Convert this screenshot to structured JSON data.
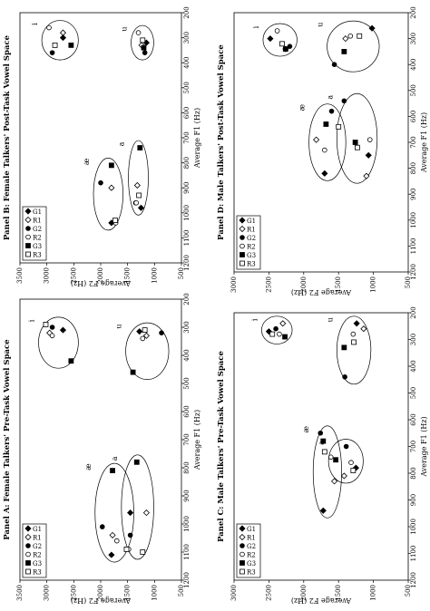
{
  "legend_labels": [
    "G1",
    "R1",
    "G2",
    "R2",
    "G3",
    "R3"
  ],
  "vowel_labels": [
    "i",
    "u",
    "æ",
    "a"
  ],
  "chart_data": [
    {
      "type": "scatter",
      "panel": "A",
      "title": "Panel A: Female Talkers' Pre-Task Vowel Space",
      "xlabel": "Average F1 (Hz)",
      "ylabel": "Average F2 (Hz)",
      "xlim": [
        200,
        1200
      ],
      "ylim": [
        500,
        3500
      ],
      "x_ticks": [
        200,
        300,
        400,
        500,
        600,
        700,
        800,
        900,
        1000,
        1100,
        1200
      ],
      "y_ticks": [
        3500,
        3000,
        2500,
        2000,
        1500,
        1000,
        500
      ],
      "y_reversed": true,
      "grid": false,
      "legend_position": "top-right",
      "series": [
        {
          "name": "G1",
          "points": [
            {
              "vowel": "i",
              "x": 310,
              "y": 2700
            },
            {
              "vowel": "u",
              "x": 315,
              "y": 1280
            },
            {
              "vowel": "æ",
              "x": 1110,
              "y": 1800
            },
            {
              "vowel": "a",
              "x": 960,
              "y": 1450
            }
          ]
        },
        {
          "name": "R1",
          "points": [
            {
              "vowel": "i",
              "x": 320,
              "y": 2950
            },
            {
              "vowel": "u",
              "x": 330,
              "y": 1150
            },
            {
              "vowel": "æ",
              "x": 1040,
              "y": 1780
            },
            {
              "vowel": "a",
              "x": 960,
              "y": 1150
            }
          ]
        },
        {
          "name": "G2",
          "points": [
            {
              "vowel": "i",
              "x": 300,
              "y": 2900
            },
            {
              "vowel": "u",
              "x": 320,
              "y": 870
            },
            {
              "vowel": "æ",
              "x": 1010,
              "y": 1970
            },
            {
              "vowel": "a",
              "x": 1040,
              "y": 1450
            }
          ]
        },
        {
          "name": "R2",
          "points": [
            {
              "vowel": "i",
              "x": 330,
              "y": 2900
            },
            {
              "vowel": "u",
              "x": 340,
              "y": 1220
            },
            {
              "vowel": "æ",
              "x": 1060,
              "y": 1700
            },
            {
              "vowel": "a",
              "x": 1090,
              "y": 1480
            }
          ]
        },
        {
          "name": "G3",
          "points": [
            {
              "vowel": "i",
              "x": 420,
              "y": 2550
            },
            {
              "vowel": "u",
              "x": 460,
              "y": 1400
            },
            {
              "vowel": "æ",
              "x": 810,
              "y": 1780
            },
            {
              "vowel": "a",
              "x": 780,
              "y": 1330
            }
          ]
        },
        {
          "name": "R3",
          "points": [
            {
              "vowel": "i",
              "x": 290,
              "y": 3020
            },
            {
              "vowel": "u",
              "x": 310,
              "y": 1180
            },
            {
              "vowel": "æ",
              "x": 1090,
              "y": 1520
            },
            {
              "vowel": "a",
              "x": 1100,
              "y": 1220
            }
          ]
        }
      ]
    },
    {
      "type": "scatter",
      "panel": "B",
      "title": "Panel B: Female Talkers' Post-Task Vowel Space",
      "xlabel": "Average F1 (Hz)",
      "ylabel": "Average F2 (Hz)",
      "xlim": [
        200,
        1200
      ],
      "ylim": [
        500,
        3500
      ],
      "x_ticks": [
        200,
        300,
        400,
        500,
        600,
        700,
        800,
        900,
        1000,
        1100,
        1200
      ],
      "y_ticks": [
        3500,
        3000,
        2500,
        2000,
        1500,
        1000,
        500
      ],
      "y_reversed": true,
      "grid": false,
      "legend_position": "top-right",
      "series": [
        {
          "name": "G1",
          "points": [
            {
              "vowel": "i",
              "x": 300,
              "y": 2700
            },
            {
              "vowel": "u",
              "x": 320,
              "y": 1150
            },
            {
              "vowel": "æ",
              "x": 1040,
              "y": 1800
            },
            {
              "vowel": "a",
              "x": 980,
              "y": 1250
            }
          ]
        },
        {
          "name": "R1",
          "points": [
            {
              "vowel": "i",
              "x": 280,
              "y": 2700
            },
            {
              "vowel": "u",
              "x": 330,
              "y": 1240
            },
            {
              "vowel": "æ",
              "x": 900,
              "y": 1800
            },
            {
              "vowel": "a",
              "x": 890,
              "y": 1320
            }
          ]
        },
        {
          "name": "G2",
          "points": [
            {
              "vowel": "i",
              "x": 360,
              "y": 2900
            },
            {
              "vowel": "u",
              "x": 360,
              "y": 1180
            },
            {
              "vowel": "æ",
              "x": 880,
              "y": 2000
            },
            {
              "vowel": "a",
              "x": 960,
              "y": 1350
            }
          ]
        },
        {
          "name": "R2",
          "points": [
            {
              "vowel": "i",
              "x": 260,
              "y": 2960
            },
            {
              "vowel": "u",
              "x": 280,
              "y": 1300
            },
            {
              "vowel": "æ",
              "x": 1040,
              "y": 1720
            },
            {
              "vowel": "a",
              "x": 960,
              "y": 1340
            }
          ]
        },
        {
          "name": "G3",
          "points": [
            {
              "vowel": "i",
              "x": 330,
              "y": 2550
            },
            {
              "vowel": "u",
              "x": 340,
              "y": 1200
            },
            {
              "vowel": "æ",
              "x": 810,
              "y": 1800
            },
            {
              "vowel": "a",
              "x": 740,
              "y": 1270
            }
          ]
        },
        {
          "name": "R3",
          "points": [
            {
              "vowel": "i",
              "x": 330,
              "y": 2850
            },
            {
              "vowel": "u",
              "x": 310,
              "y": 1220
            },
            {
              "vowel": "æ",
              "x": 1030,
              "y": 1730
            },
            {
              "vowel": "a",
              "x": 930,
              "y": 1290
            }
          ]
        }
      ]
    },
    {
      "type": "scatter",
      "panel": "C",
      "title": "Panel C: Male Talkers' Pre-Task Vowel Space",
      "xlabel": "Average F1 (Hz)",
      "ylabel": "Average F2 (Hz)",
      "xlim": [
        200,
        1200
      ],
      "ylim": [
        500,
        3000
      ],
      "x_ticks": [
        200,
        300,
        400,
        500,
        600,
        700,
        800,
        900,
        1000,
        1100,
        1200
      ],
      "y_ticks": [
        3000,
        2500,
        2000,
        1500,
        1000,
        500
      ],
      "y_reversed": true,
      "grid": false,
      "legend_position": "top-right",
      "series": [
        {
          "name": "G1",
          "points": [
            {
              "vowel": "i",
              "x": 270,
              "y": 2500
            },
            {
              "vowel": "u",
              "x": 240,
              "y": 1240
            },
            {
              "vowel": "æ",
              "x": 940,
              "y": 1720
            },
            {
              "vowel": "a",
              "x": 780,
              "y": 1250
            }
          ]
        },
        {
          "name": "R1",
          "points": [
            {
              "vowel": "i",
              "x": 240,
              "y": 2300
            },
            {
              "vowel": "u",
              "x": 260,
              "y": 1140
            },
            {
              "vowel": "æ",
              "x": 830,
              "y": 1560
            },
            {
              "vowel": "a",
              "x": 810,
              "y": 1420
            }
          ]
        },
        {
          "name": "G2",
          "points": [
            {
              "vowel": "i",
              "x": 260,
              "y": 2400
            },
            {
              "vowel": "u",
              "x": 440,
              "y": 1410
            },
            {
              "vowel": "æ",
              "x": 650,
              "y": 1760
            },
            {
              "vowel": "a",
              "x": 700,
              "y": 1390
            }
          ]
        },
        {
          "name": "R2",
          "points": [
            {
              "vowel": "i",
              "x": 280,
              "y": 2350
            },
            {
              "vowel": "u",
              "x": 280,
              "y": 1290
            },
            {
              "vowel": "æ",
              "x": 740,
              "y": 1610
            },
            {
              "vowel": "a",
              "x": 760,
              "y": 1320
            }
          ]
        },
        {
          "name": "G3",
          "points": [
            {
              "vowel": "i",
              "x": 290,
              "y": 2270
            },
            {
              "vowel": "u",
              "x": 330,
              "y": 1420
            },
            {
              "vowel": "æ",
              "x": 680,
              "y": 1720
            },
            {
              "vowel": "a",
              "x": 750,
              "y": 1540
            }
          ]
        },
        {
          "name": "R3",
          "points": [
            {
              "vowel": "i",
              "x": 280,
              "y": 2450
            },
            {
              "vowel": "u",
              "x": 310,
              "y": 1280
            },
            {
              "vowel": "æ",
              "x": 720,
              "y": 1700
            },
            {
              "vowel": "a",
              "x": 790,
              "y": 1290
            }
          ]
        }
      ]
    },
    {
      "type": "scatter",
      "panel": "D",
      "title": "Panel D: Male Talkers' Post-Task Vowel Space",
      "xlabel": "Average F1 (Hz)",
      "ylabel": "Average F2 (Hz)",
      "xlim": [
        200,
        1200
      ],
      "ylim": [
        500,
        3000
      ],
      "x_ticks": [
        200,
        300,
        400,
        500,
        600,
        700,
        800,
        900,
        1000,
        1100,
        1200
      ],
      "y_ticks": [
        3000,
        2500,
        2000,
        1500,
        1000,
        500
      ],
      "y_reversed": true,
      "grid": false,
      "legend_position": "top-right",
      "series": [
        {
          "name": "G1",
          "points": [
            {
              "vowel": "i",
              "x": 300,
              "y": 2480
            },
            {
              "vowel": "u",
              "x": 260,
              "y": 1020
            },
            {
              "vowel": "æ",
              "x": 820,
              "y": 1700
            },
            {
              "vowel": "a",
              "x": 750,
              "y": 1070
            }
          ]
        },
        {
          "name": "R1",
          "points": [
            {
              "vowel": "i",
              "x": 340,
              "y": 2260
            },
            {
              "vowel": "u",
              "x": 300,
              "y": 1400
            },
            {
              "vowel": "æ",
              "x": 690,
              "y": 1820
            },
            {
              "vowel": "a",
              "x": 830,
              "y": 1100
            }
          ]
        },
        {
          "name": "G2",
          "points": [
            {
              "vowel": "i",
              "x": 330,
              "y": 2200
            },
            {
              "vowel": "u",
              "x": 400,
              "y": 1560
            },
            {
              "vowel": "æ",
              "x": 580,
              "y": 1600
            },
            {
              "vowel": "a",
              "x": 540,
              "y": 1420
            }
          ]
        },
        {
          "name": "R2",
          "points": [
            {
              "vowel": "i",
              "x": 270,
              "y": 2380
            },
            {
              "vowel": "u",
              "x": 290,
              "y": 1330
            },
            {
              "vowel": "æ",
              "x": 730,
              "y": 1700
            },
            {
              "vowel": "a",
              "x": 690,
              "y": 1050
            }
          ]
        },
        {
          "name": "G3",
          "points": [
            {
              "vowel": "i",
              "x": 340,
              "y": 2260
            },
            {
              "vowel": "u",
              "x": 350,
              "y": 1420
            },
            {
              "vowel": "æ",
              "x": 630,
              "y": 1680
            },
            {
              "vowel": "a",
              "x": 700,
              "y": 1260
            }
          ]
        },
        {
          "name": "R3",
          "points": [
            {
              "vowel": "i",
              "x": 320,
              "y": 2310
            },
            {
              "vowel": "u",
              "x": 290,
              "y": 1200
            },
            {
              "vowel": "æ",
              "x": 640,
              "y": 1500
            },
            {
              "vowel": "a",
              "x": 720,
              "y": 1230
            }
          ]
        }
      ]
    }
  ]
}
